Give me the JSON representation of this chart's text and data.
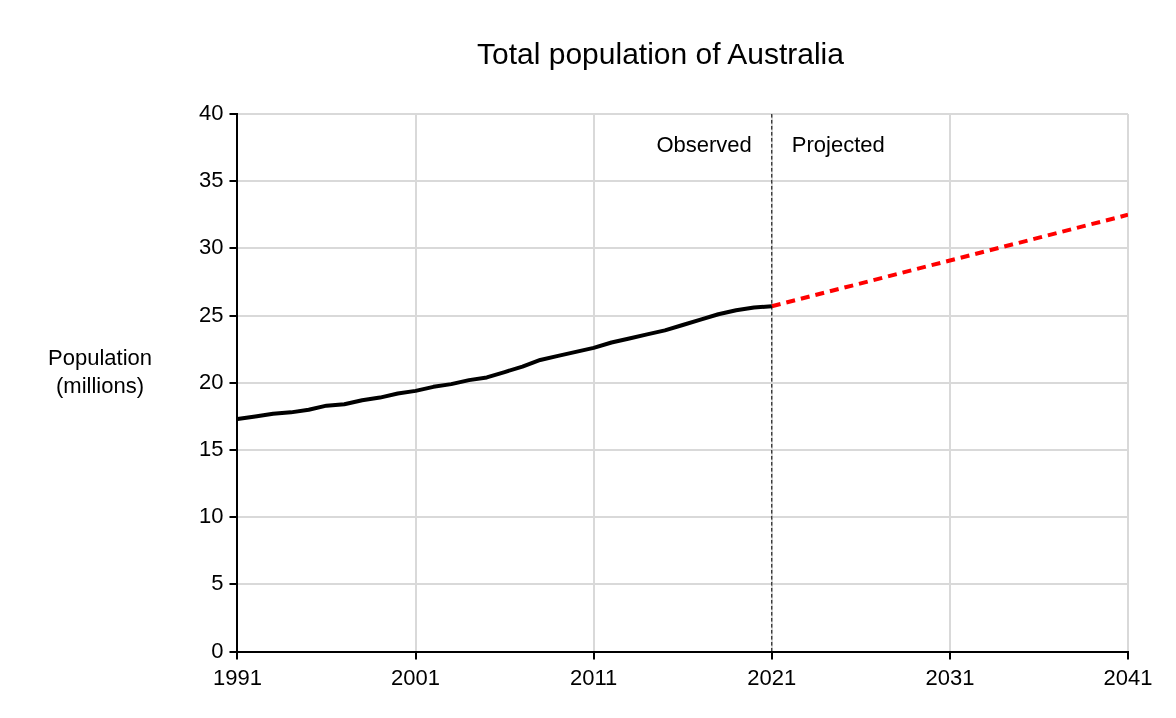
{
  "chart_data": {
    "type": "line",
    "title": "Total population of Australia",
    "ylabel": "Population (millions)",
    "xlim": [
      1991,
      2041
    ],
    "xticks": [
      1991,
      2001,
      2011,
      2021,
      2031,
      2041
    ],
    "ylim": [
      0,
      40
    ],
    "yticks": [
      0,
      5,
      10,
      15,
      20,
      25,
      30,
      35,
      40
    ],
    "grid": true,
    "legend": false,
    "series": [
      {
        "color": "#000000",
        "line_style": "solid",
        "x": [
          1991,
          1992,
          1993,
          1994,
          1995,
          1996,
          1997,
          1998,
          1999,
          2000,
          2001,
          2002,
          2003,
          2004,
          2005,
          2006,
          2007,
          2008,
          2009,
          2010,
          2011,
          2012,
          2013,
          2014,
          2015,
          2016,
          2017,
          2018,
          2019,
          2020,
          2021
        ],
        "values": [
          17.3,
          17.5,
          17.7,
          17.8,
          18.0,
          18.3,
          18.4,
          18.7,
          18.9,
          19.2,
          19.4,
          19.7,
          19.9,
          20.2,
          20.4,
          20.8,
          21.2,
          21.7,
          22.0,
          22.3,
          22.6,
          23.0,
          23.3,
          23.6,
          23.9,
          24.3,
          24.7,
          25.1,
          25.4,
          25.6,
          25.7
        ]
      },
      {
        "color": "#ff0000",
        "line_style": "dashed",
        "x": [
          2021,
          2026,
          2031,
          2036,
          2041
        ],
        "values": [
          25.7,
          27.4,
          29.1,
          30.8,
          32.5
        ]
      }
    ],
    "ref_lines": [
      {
        "axis": "x",
        "value": 2021,
        "color": "#000000",
        "line_style": "dashed"
      }
    ],
    "annotations": [
      "Observed",
      "Projected"
    ]
  }
}
